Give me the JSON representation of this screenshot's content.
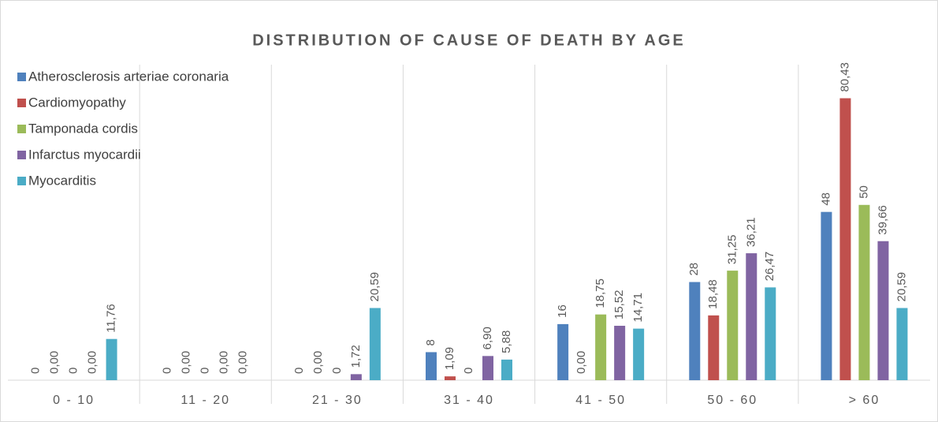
{
  "chart_data": {
    "type": "bar",
    "title": "DISTRIBUTION OF CAUSE OF DEATH BY AGE",
    "categories": [
      "0 - 10",
      "11 - 20",
      "21 - 30",
      "31 - 40",
      "41 - 50",
      "50 - 60",
      "> 60"
    ],
    "series": [
      {
        "name": "Atherosclerosis arteriae coronaria",
        "color": "#4f81bd",
        "values": [
          0,
          0,
          0,
          8,
          16,
          28,
          48
        ]
      },
      {
        "name": "Cardiomyopathy",
        "color": "#c0504d",
        "values": [
          0,
          0,
          0,
          1.09,
          0,
          18.48,
          80.43
        ],
        "value_labels": [
          "0,00",
          "0,00",
          "0,00",
          "1,09",
          "0,00",
          "18,48",
          "80,43"
        ]
      },
      {
        "name": "Tamponada cordis",
        "color": "#9bbb59",
        "values": [
          0,
          0,
          0,
          0,
          18.75,
          31.25,
          50
        ],
        "value_labels": [
          "0",
          "0",
          "0",
          "0",
          "18,75",
          "31,25",
          "50"
        ]
      },
      {
        "name": "Infarctus myocardii",
        "color": "#8064a2",
        "values": [
          0,
          0,
          1.72,
          6.9,
          15.52,
          36.21,
          39.66
        ],
        "value_labels": [
          "0,00",
          "0,00",
          "1,72",
          "6,90",
          "15,52",
          "36,21",
          "39,66"
        ]
      },
      {
        "name": "Myocarditis",
        "color": "#4bacc6",
        "values": [
          11.76,
          0,
          20.59,
          5.88,
          14.71,
          26.47,
          20.59
        ],
        "value_labels": [
          "11,76",
          "0,00",
          "20,59",
          "5,88",
          "14,71",
          "26,47",
          "20,59"
        ]
      }
    ],
    "ylim": [
      0,
      90
    ],
    "legend": "top-left"
  }
}
